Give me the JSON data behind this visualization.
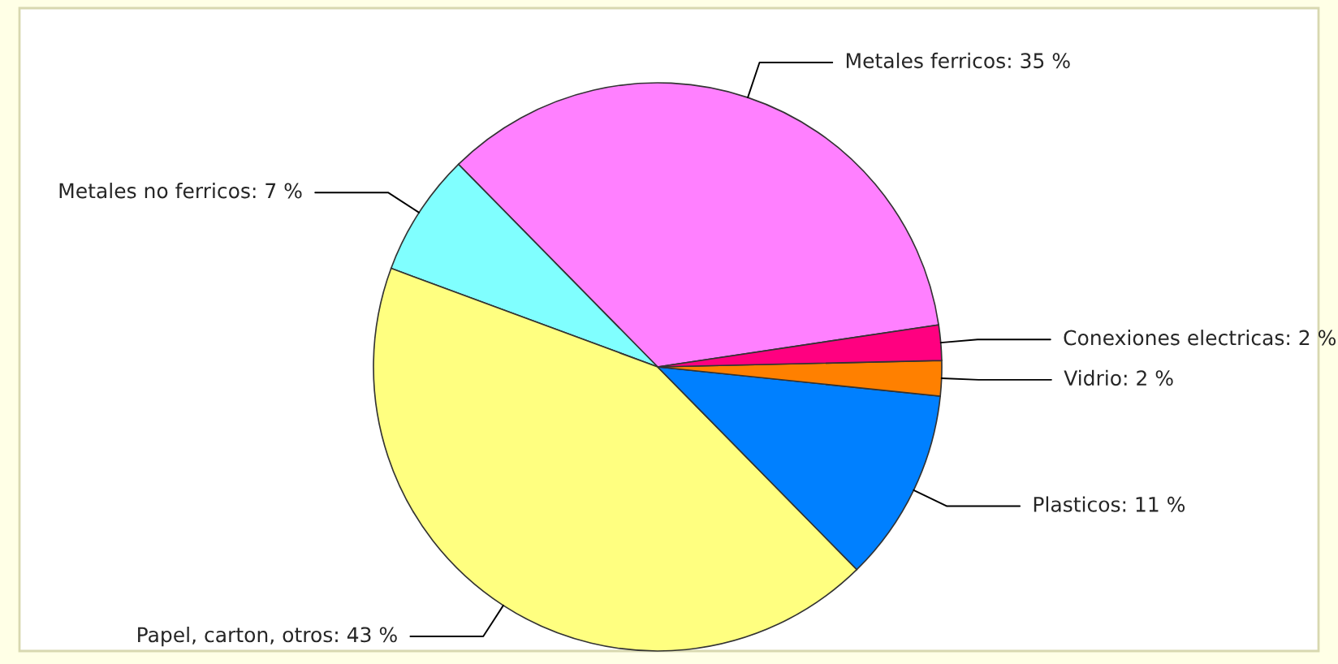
{
  "chart_data": {
    "type": "pie",
    "categories": [
      "Metales ferricos",
      "Metales no ferricos",
      "Papel, carton, otros",
      "Plasticos",
      "Vidrio",
      "Conexiones electricas"
    ],
    "values": [
      35,
      7,
      43,
      11,
      2,
      2
    ],
    "value_labels": [
      "35 %",
      "7 %",
      "43 %",
      "11 %",
      "2 %",
      "2 %"
    ],
    "colors": [
      "#ff80ff",
      "#80ffff",
      "#ffff80",
      "#0080ff",
      "#ff8000",
      "#ff0080"
    ],
    "legend": false
  }
}
